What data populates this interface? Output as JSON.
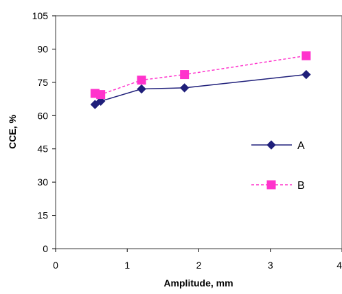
{
  "chart_data": {
    "type": "line",
    "xlabel": "Amplitude, mm",
    "ylabel": "CCE, %",
    "xlim": [
      0,
      4
    ],
    "ylim": [
      0,
      105
    ],
    "xticks": [
      0,
      1,
      2,
      3,
      4
    ],
    "yticks": [
      0,
      15,
      30,
      45,
      60,
      75,
      90,
      105
    ],
    "grid": false,
    "legend_position": "right",
    "series": [
      {
        "name": "A",
        "color": "#1f1f7a",
        "marker": "diamond",
        "line_style": "solid",
        "x": [
          0.55,
          0.63,
          1.2,
          1.8,
          3.5
        ],
        "y": [
          65,
          66.5,
          72,
          72.5,
          78.5
        ]
      },
      {
        "name": "B",
        "color": "#ff33cc",
        "marker": "square",
        "line_style": "dashed",
        "x": [
          0.55,
          0.63,
          1.2,
          1.8,
          3.5
        ],
        "y": [
          70,
          69.5,
          76,
          78.5,
          87
        ]
      }
    ]
  }
}
